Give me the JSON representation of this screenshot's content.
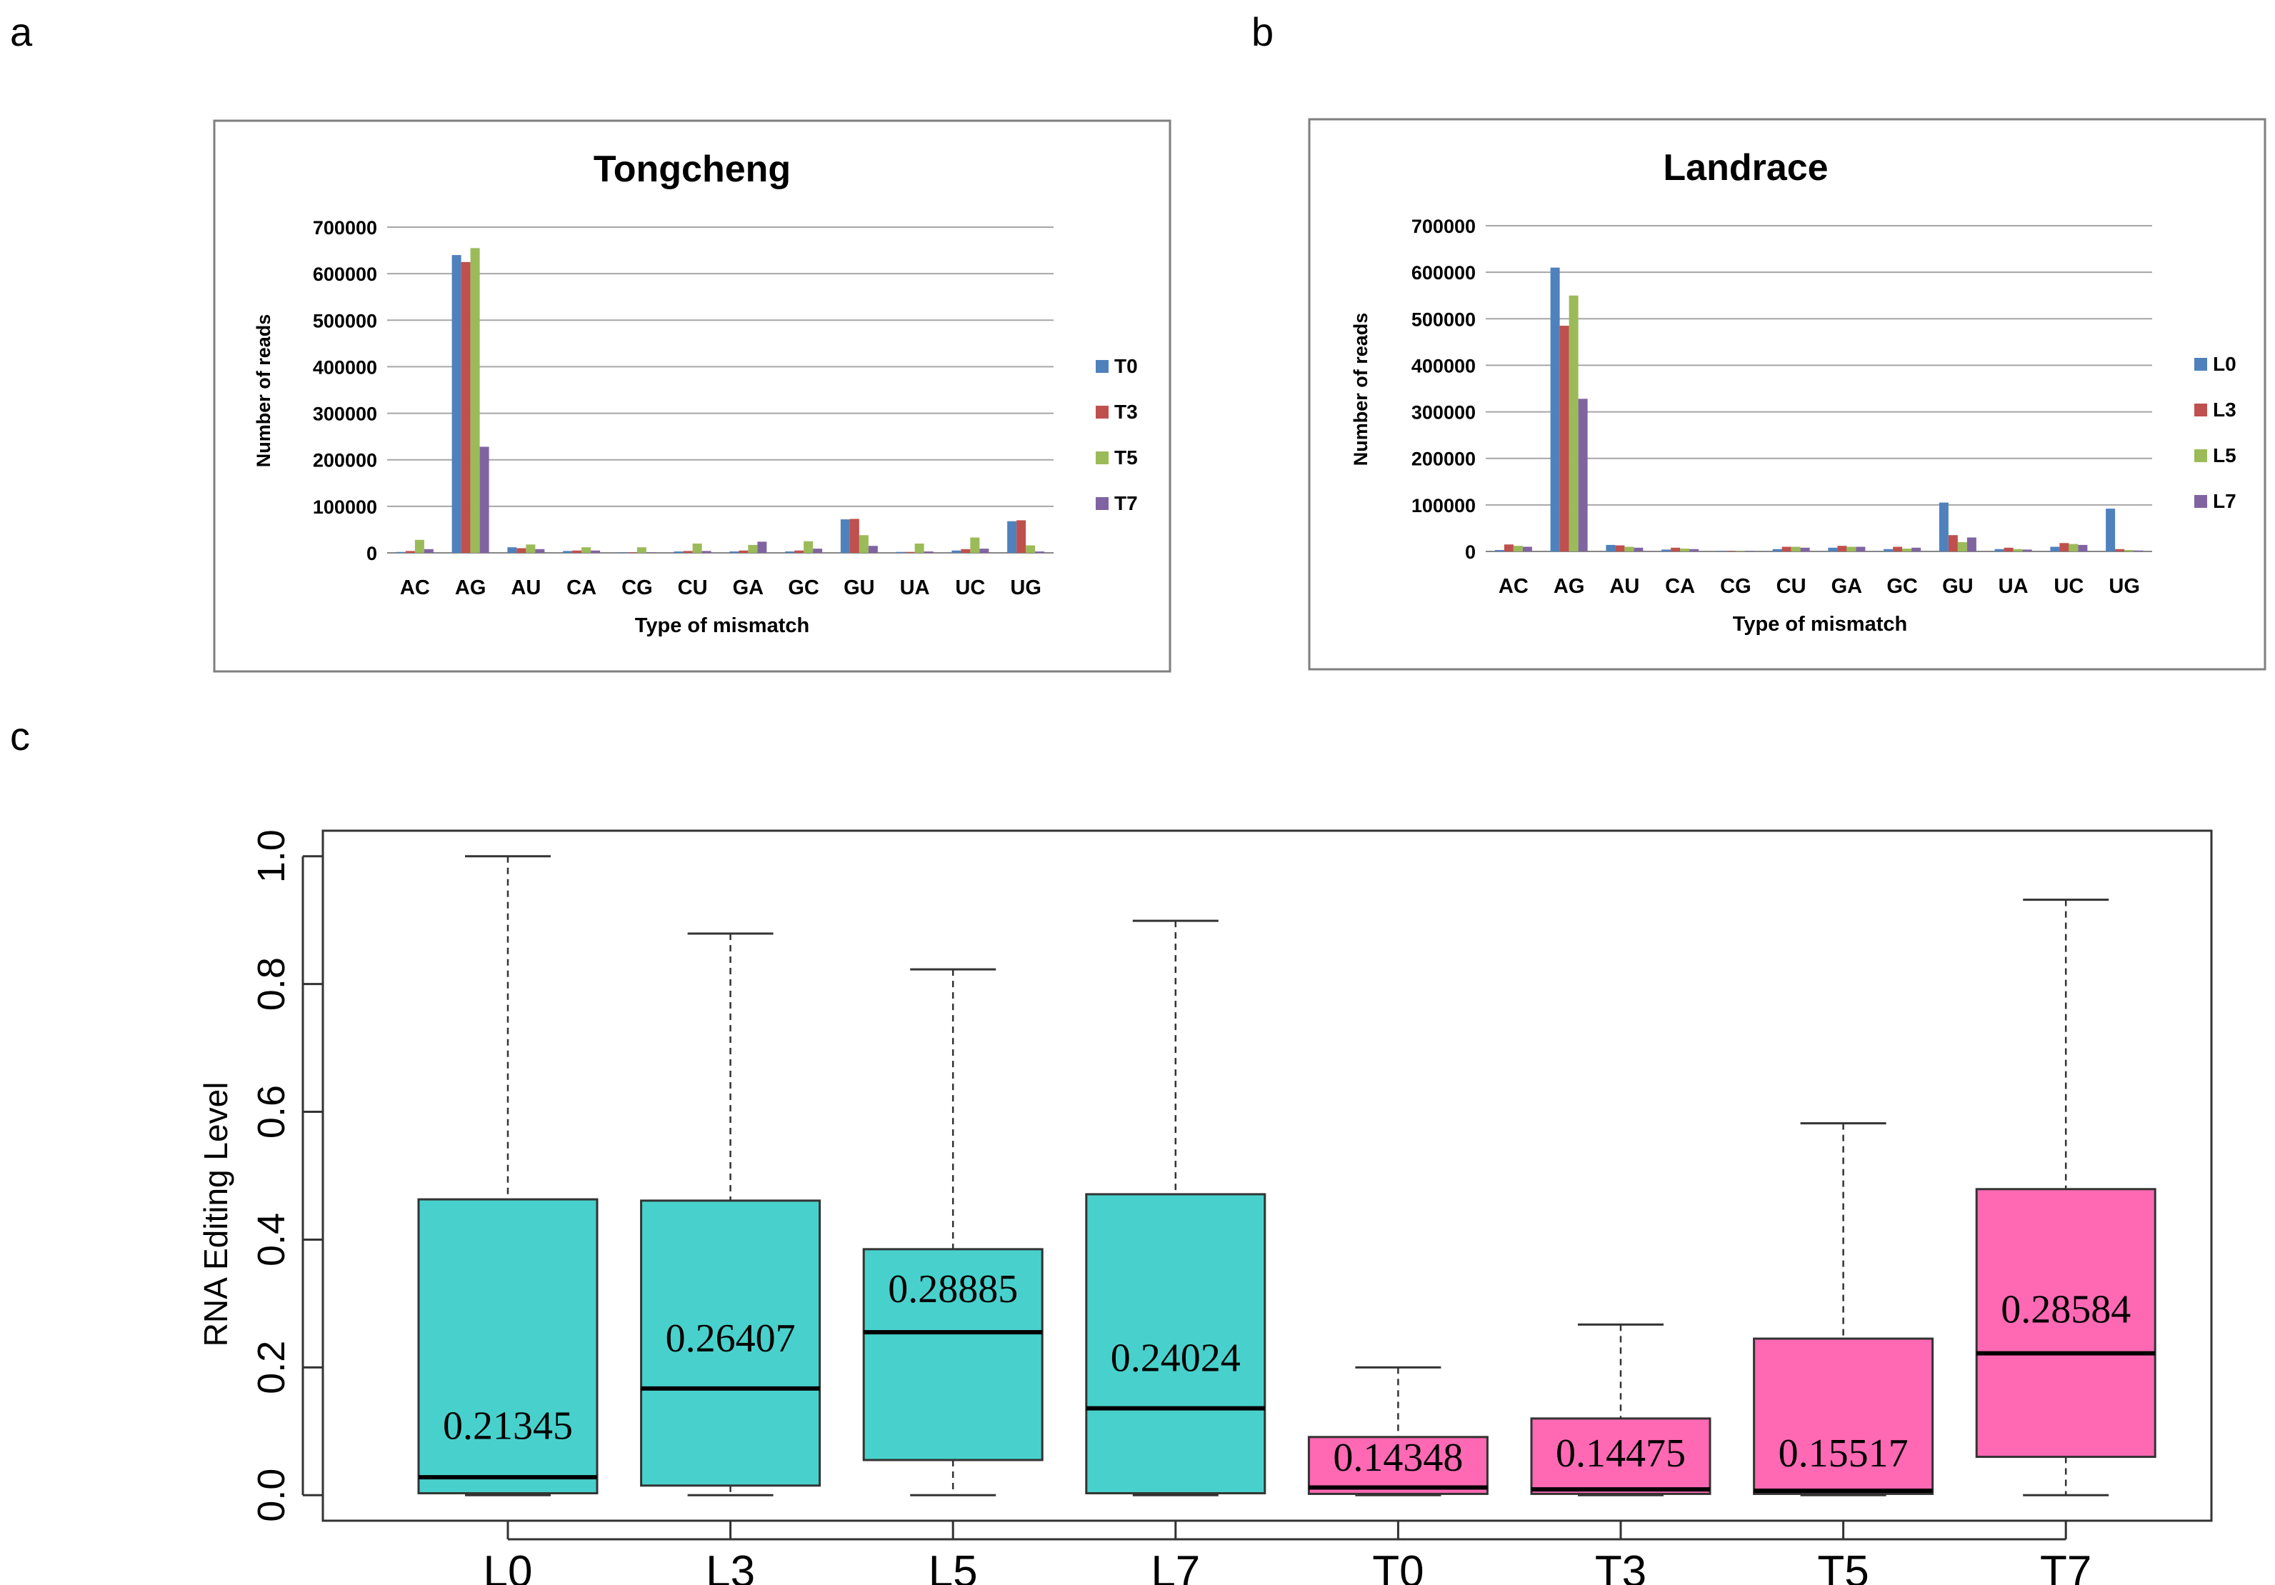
{
  "panels": {
    "a": {
      "label": "a"
    },
    "b": {
      "label": "b"
    },
    "c": {
      "label": "c"
    }
  },
  "colors": {
    "series4": [
      "#4F81BD",
      "#C0504D",
      "#9BBB59",
      "#8064A2"
    ],
    "landrace_box": "#48D1CC",
    "tongcheng_box": "#FF69B4"
  },
  "chart_data": [
    {
      "id": "tongcheng",
      "type": "bar",
      "title": "Tongcheng",
      "xlabel": "Type of mismatch",
      "ylabel": "Number of reads",
      "ylim": [
        0,
        700000
      ],
      "yticks": [
        0,
        100000,
        200000,
        300000,
        400000,
        500000,
        600000,
        700000
      ],
      "ytick_labels": [
        "0",
        "100000",
        "200000",
        "300000",
        "400000",
        "500000",
        "600000",
        "700000"
      ],
      "categories": [
        "AC",
        "AG",
        "AU",
        "CA",
        "CG",
        "CU",
        "GA",
        "GC",
        "GU",
        "UA",
        "UC",
        "UG"
      ],
      "legend_position": "right",
      "series": [
        {
          "name": "T0",
          "values": [
            2000,
            640000,
            12000,
            4000,
            1000,
            3000,
            3000,
            3000,
            72000,
            2000,
            5000,
            68000
          ]
        },
        {
          "name": "T3",
          "values": [
            4000,
            625000,
            10000,
            5000,
            1000,
            4000,
            5000,
            5000,
            73000,
            2000,
            8000,
            70000
          ]
        },
        {
          "name": "T5",
          "values": [
            28000,
            655000,
            18000,
            12000,
            12000,
            20000,
            17000,
            25000,
            38000,
            20000,
            33000,
            16000
          ]
        },
        {
          "name": "T7",
          "values": [
            8000,
            228000,
            8000,
            5000,
            1000,
            4000,
            24000,
            9000,
            15000,
            3000,
            9000,
            3000
          ]
        }
      ]
    },
    {
      "id": "landrace",
      "type": "bar",
      "title": "Landrace",
      "xlabel": "Type of mismatch",
      "ylabel": "Number of reads",
      "ylim": [
        0,
        700000
      ],
      "yticks": [
        0,
        100000,
        200000,
        300000,
        400000,
        500000,
        600000,
        700000
      ],
      "ytick_labels": [
        "0",
        "100000",
        "200000",
        "300000",
        "400000",
        "500000",
        "600000",
        "700000"
      ],
      "categories": [
        "AC",
        "AG",
        "AU",
        "CA",
        "CG",
        "CU",
        "GA",
        "GC",
        "GU",
        "UA",
        "UC",
        "UG"
      ],
      "legend_position": "right",
      "series": [
        {
          "name": "L0",
          "values": [
            3000,
            610000,
            14000,
            4000,
            1000,
            5000,
            8000,
            5000,
            105000,
            5000,
            10000,
            92000
          ]
        },
        {
          "name": "L3",
          "values": [
            15000,
            485000,
            13000,
            8000,
            1000,
            10000,
            12000,
            10000,
            35000,
            8000,
            18000,
            5000
          ]
        },
        {
          "name": "L5",
          "values": [
            12000,
            550000,
            10000,
            6000,
            1000,
            10000,
            10000,
            6000,
            20000,
            5000,
            16000,
            3000
          ]
        },
        {
          "name": "L7",
          "values": [
            10000,
            328000,
            8000,
            5000,
            1000,
            8000,
            10000,
            8000,
            30000,
            4000,
            14000,
            2000
          ]
        }
      ]
    },
    {
      "id": "editing",
      "type": "boxplot",
      "title": "",
      "xlabel": "",
      "ylabel": "RNA Editing Level",
      "ylim": [
        -0.04,
        1.04
      ],
      "yticks": [
        0.0,
        0.2,
        0.4,
        0.6,
        0.8,
        1.0
      ],
      "ytick_labels": [
        "0.0",
        "0.2",
        "0.4",
        "0.6",
        "0.8",
        "1.0"
      ],
      "categories": [
        "L0",
        "L3",
        "L5",
        "L7",
        "T0",
        "T3",
        "T5",
        "T7"
      ],
      "boxes": [
        {
          "name": "L0",
          "group": "landrace",
          "min": 0.0,
          "q1": 0.003,
          "median": 0.028,
          "q3": 0.463,
          "max": 1.0,
          "mean_label": "0.21345",
          "mean_label_y": 0.088
        },
        {
          "name": "L3",
          "group": "landrace",
          "min": 0.0,
          "q1": 0.015,
          "median": 0.167,
          "q3": 0.461,
          "max": 0.879,
          "mean_label": "0.26407",
          "mean_label_y": 0.225
        },
        {
          "name": "L5",
          "group": "landrace",
          "min": 0.0,
          "q1": 0.055,
          "median": 0.255,
          "q3": 0.385,
          "max": 0.823,
          "mean_label": "0.28885",
          "mean_label_y": 0.302
        },
        {
          "name": "L7",
          "group": "landrace",
          "min": 0.0,
          "q1": 0.003,
          "median": 0.136,
          "q3": 0.471,
          "max": 0.899,
          "mean_label": "0.24024",
          "mean_label_y": 0.194
        },
        {
          "name": "T0",
          "group": "tongcheng",
          "min": 0.0,
          "q1": 0.002,
          "median": 0.012,
          "q3": 0.091,
          "max": 0.2,
          "mean_label": "0.14348",
          "mean_label_y": 0.038
        },
        {
          "name": "T3",
          "group": "tongcheng",
          "min": 0.0,
          "q1": 0.002,
          "median": 0.009,
          "q3": 0.12,
          "max": 0.267,
          "mean_label": "0.14475",
          "mean_label_y": 0.045
        },
        {
          "name": "T5",
          "group": "tongcheng",
          "min": 0.0,
          "q1": 0.002,
          "median": 0.007,
          "q3": 0.245,
          "max": 0.582,
          "mean_label": "0.15517",
          "mean_label_y": 0.045
        },
        {
          "name": "T7",
          "group": "tongcheng",
          "min": 0.0,
          "q1": 0.06,
          "median": 0.222,
          "q3": 0.479,
          "max": 0.932,
          "mean_label": "0.28584",
          "mean_label_y": 0.27
        }
      ]
    }
  ]
}
